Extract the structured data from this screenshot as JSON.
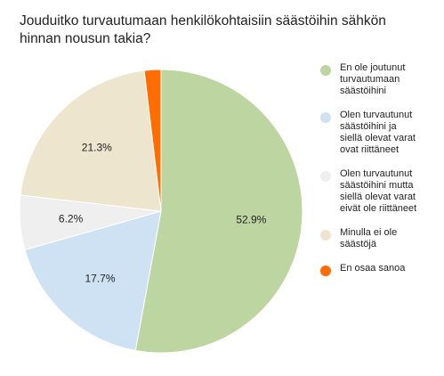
{
  "chart_data": {
    "type": "pie",
    "title": "Jouduitko turvautumaan henkilökohtaisiin säästöihin sähkön hinnan nousun takia?",
    "legend_position": "right",
    "slices": [
      {
        "label": "En ole joutunut turvautumaan säästöihini",
        "value": 52.9,
        "value_label": "52.9%",
        "color": "#bdd5a0"
      },
      {
        "label": "Olen turvautunut säästöihini ja siellä olevat varat ovat riittäneet",
        "value": 17.7,
        "value_label": "17.7%",
        "color": "#cfe2f3"
      },
      {
        "label": "Olen turvautunut säästöihini mutta siellä olevat varat eivät ole riittäneet",
        "value": 6.2,
        "value_label": "6.2%",
        "color": "#efefef"
      },
      {
        "label": "Minulla ei ole säästöjä",
        "value": 21.3,
        "value_label": "21.3%",
        "color": "#ede5cd"
      },
      {
        "label": "En osaa sanoa",
        "value": 1.9,
        "value_label": "",
        "color": "#ff6d01"
      }
    ]
  }
}
